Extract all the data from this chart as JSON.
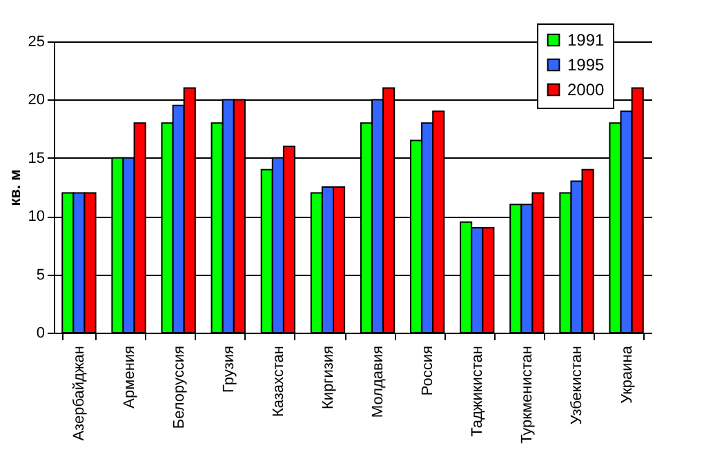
{
  "chart_data": {
    "type": "bar",
    "ylabel": "кв. м",
    "categories": [
      "Азербайджан",
      "Армения",
      "Белоруссия",
      "Грузия",
      "Казахстан",
      "Киргизия",
      "Молдавия",
      "Россия",
      "Таджикистан",
      "Туркменистан",
      "Узбекистан",
      "Украина"
    ],
    "series": [
      {
        "name": "1991",
        "color": "#00ff00",
        "values": [
          12,
          15,
          18,
          18,
          14,
          12,
          18,
          16.5,
          9.5,
          11,
          12,
          18
        ]
      },
      {
        "name": "1995",
        "color": "#3366ff",
        "values": [
          12,
          15,
          19.5,
          20,
          15,
          12.5,
          20,
          18,
          9,
          11,
          13,
          19
        ]
      },
      {
        "name": "2000",
        "color": "#ff0000",
        "values": [
          12,
          18,
          21,
          20,
          16,
          12.5,
          21,
          19,
          9,
          12,
          14,
          21
        ]
      }
    ],
    "ylim": [
      0,
      25
    ],
    "yticks": [
      0,
      5,
      10,
      15,
      20,
      25
    ],
    "grid": "y",
    "legend": "top right"
  }
}
